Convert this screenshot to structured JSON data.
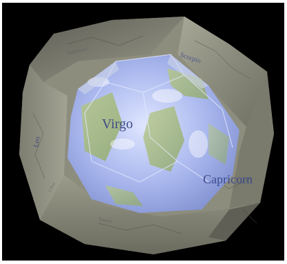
{
  "image": {
    "background": "#000000",
    "outer_shell_color": "#8f8f80",
    "inner_globe_tint": "#b9c6f0",
    "labels": {
      "virgo": "Virgo",
      "capricorn": "Capricorn",
      "scorpio": "Scorpio",
      "leo": "Leo",
      "outer_small": "Sagittarius",
      "bottom_small": "Taurus",
      "left_small": "Libra"
    }
  }
}
